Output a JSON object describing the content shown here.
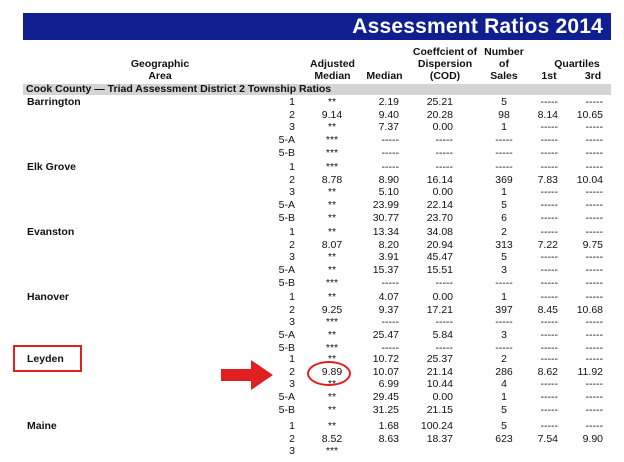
{
  "title": "Assessment Ratios 2014",
  "headers": {
    "area": [
      "Geographic",
      "Area"
    ],
    "adjusted_median": [
      "Adjusted",
      "Median"
    ],
    "median": "Median",
    "cod": [
      "Coeffcient of",
      "Dispersion",
      "(COD)"
    ],
    "number_of_sales": [
      "Number",
      "of",
      "Sales"
    ],
    "quartiles": "Quartiles",
    "q1": "1st",
    "q3": "3rd"
  },
  "section": "Cook County — Triad Assessment District 2 Township Ratios",
  "areas": [
    {
      "name": "Barrington",
      "rows": [
        {
          "twp": "1",
          "adj": "**",
          "med": "2.19",
          "cod": "25.21",
          "num": "5",
          "q1": "-----",
          "q3": "-----"
        },
        {
          "twp": "2",
          "adj": "9.14",
          "med": "9.40",
          "cod": "20.28",
          "num": "98",
          "q1": "8.14",
          "q3": "10.65"
        },
        {
          "twp": "3",
          "adj": "**",
          "med": "7.37",
          "cod": "0.00",
          "num": "1",
          "q1": "-----",
          "q3": "-----"
        },
        {
          "twp": "5-A",
          "adj": "***",
          "med": "-----",
          "cod": "-----",
          "num": "-----",
          "q1": "-----",
          "q3": "-----"
        },
        {
          "twp": "5-B",
          "adj": "***",
          "med": "-----",
          "cod": "-----",
          "num": "-----",
          "q1": "-----",
          "q3": "-----"
        }
      ]
    },
    {
      "name": "Elk Grove",
      "rows": [
        {
          "twp": "1",
          "adj": "***",
          "med": "-----",
          "cod": "-----",
          "num": "-----",
          "q1": "-----",
          "q3": "-----"
        },
        {
          "twp": "2",
          "adj": "8.78",
          "med": "8.90",
          "cod": "16.14",
          "num": "369",
          "q1": "7.83",
          "q3": "10.04"
        },
        {
          "twp": "3",
          "adj": "**",
          "med": "5.10",
          "cod": "0.00",
          "num": "1",
          "q1": "-----",
          "q3": "-----"
        },
        {
          "twp": "5-A",
          "adj": "**",
          "med": "23.99",
          "cod": "22.14",
          "num": "5",
          "q1": "-----",
          "q3": "-----"
        },
        {
          "twp": "5-B",
          "adj": "**",
          "med": "30.77",
          "cod": "23.70",
          "num": "6",
          "q1": "-----",
          "q3": "-----"
        }
      ]
    },
    {
      "name": "Evanston",
      "rows": [
        {
          "twp": "1",
          "adj": "**",
          "med": "13.34",
          "cod": "34.08",
          "num": "2",
          "q1": "-----",
          "q3": "-----"
        },
        {
          "twp": "2",
          "adj": "8.07",
          "med": "8.20",
          "cod": "20.94",
          "num": "313",
          "q1": "7.22",
          "q3": "9.75"
        },
        {
          "twp": "3",
          "adj": "**",
          "med": "3.91",
          "cod": "45.47",
          "num": "5",
          "q1": "-----",
          "q3": "-----"
        },
        {
          "twp": "5-A",
          "adj": "**",
          "med": "15.37",
          "cod": "15.51",
          "num": "3",
          "q1": "-----",
          "q3": "-----"
        },
        {
          "twp": "5-B",
          "adj": "***",
          "med": "-----",
          "cod": "-----",
          "num": "-----",
          "q1": "-----",
          "q3": "-----"
        }
      ]
    },
    {
      "name": "Hanover",
      "rows": [
        {
          "twp": "1",
          "adj": "**",
          "med": "4.07",
          "cod": "0.00",
          "num": "1",
          "q1": "-----",
          "q3": "-----"
        },
        {
          "twp": "2",
          "adj": "9.25",
          "med": "9.37",
          "cod": "17.21",
          "num": "397",
          "q1": "8.45",
          "q3": "10.68"
        },
        {
          "twp": "3",
          "adj": "***",
          "med": "-----",
          "cod": "-----",
          "num": "-----",
          "q1": "-----",
          "q3": "-----"
        },
        {
          "twp": "5-A",
          "adj": "**",
          "med": "25.47",
          "cod": "5.84",
          "num": "3",
          "q1": "-----",
          "q3": "-----"
        },
        {
          "twp": "5-B",
          "adj": "***",
          "med": "-----",
          "cod": "-----",
          "num": "-----",
          "q1": "-----",
          "q3": "-----"
        }
      ]
    },
    {
      "name": "Leyden",
      "rows": [
        {
          "twp": "1",
          "adj": "**",
          "med": "10.72",
          "cod": "25.37",
          "num": "2",
          "q1": "-----",
          "q3": "-----"
        },
        {
          "twp": "2",
          "adj": "9.89",
          "med": "10.07",
          "cod": "21.14",
          "num": "286",
          "q1": "8.62",
          "q3": "11.92"
        },
        {
          "twp": "3",
          "adj": "**",
          "med": "6.99",
          "cod": "10.44",
          "num": "4",
          "q1": "-----",
          "q3": "-----"
        },
        {
          "twp": "5-A",
          "adj": "**",
          "med": "29.45",
          "cod": "0.00",
          "num": "1",
          "q1": "-----",
          "q3": "-----"
        },
        {
          "twp": "5-B",
          "adj": "**",
          "med": "31.25",
          "cod": "21.15",
          "num": "5",
          "q1": "-----",
          "q3": "-----"
        }
      ]
    },
    {
      "name": "Maine",
      "rows": [
        {
          "twp": "1",
          "adj": "**",
          "med": "1.68",
          "cod": "100.24",
          "num": "5",
          "q1": "-----",
          "q3": "-----"
        },
        {
          "twp": "2",
          "adj": "8.52",
          "med": "8.63",
          "cod": "18.37",
          "num": "623",
          "q1": "7.54",
          "q3": "9.90"
        },
        {
          "twp": "3",
          "adj": "***",
          "med": "",
          "cod": "",
          "num": "",
          "q1": "",
          "q3": ""
        }
      ]
    }
  ],
  "colors": {
    "title_bar": "#0f1f8f",
    "section_bar": "#d4d4d4",
    "annotation": "#e02020"
  },
  "annotations": {
    "highlighted_area": "Leyden",
    "highlighted_value": "9.89"
  }
}
